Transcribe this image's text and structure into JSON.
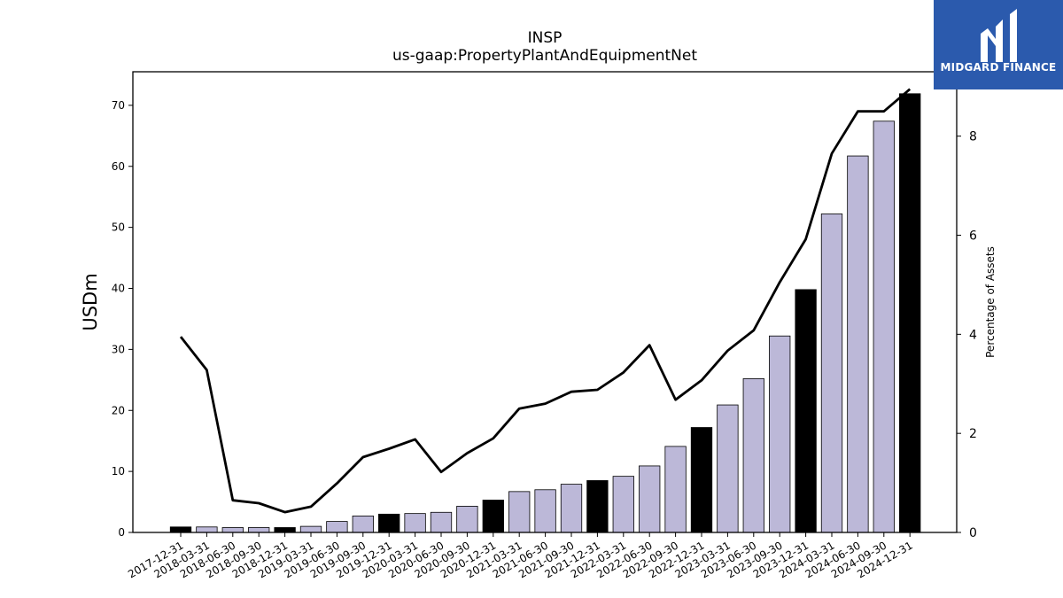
{
  "chart_data": {
    "type": "bar",
    "title": "INSP",
    "subtitle": "us-gaap:PropertyPlantAndEquipmentNet",
    "ylabel": "USDm",
    "y2label": "Percentage of Assets",
    "ylim": [
      0,
      75.5
    ],
    "y2lim": [
      0,
      9.3
    ],
    "yticks": [
      0,
      10,
      20,
      30,
      40,
      50,
      60,
      70
    ],
    "y2ticks": [
      0,
      2,
      4,
      6,
      8
    ],
    "categories": [
      "2017-12-31",
      "2018-03-31",
      "2018-06-30",
      "2018-09-30",
      "2018-12-31",
      "2019-03-31",
      "2019-06-30",
      "2019-09-30",
      "2019-12-31",
      "2020-03-31",
      "2020-06-30",
      "2020-09-30",
      "2020-12-31",
      "2021-03-31",
      "2021-06-30",
      "2021-09-30",
      "2021-12-31",
      "2022-03-31",
      "2022-06-30",
      "2022-09-30",
      "2022-12-31",
      "2023-03-31",
      "2023-06-30",
      "2023-09-30",
      "2023-12-31",
      "2024-03-31",
      "2024-06-30",
      "2024-09-30",
      "2024-12-31"
    ],
    "series": [
      {
        "type": "bar",
        "values": [
          0.9,
          0.9,
          0.8,
          0.8,
          0.8,
          1.0,
          1.8,
          2.7,
          3.0,
          3.1,
          3.3,
          4.3,
          5.3,
          6.7,
          7.0,
          7.9,
          8.5,
          9.2,
          10.9,
          14.1,
          17.2,
          20.9,
          25.2,
          32.2,
          39.8,
          52.2,
          61.7,
          67.4,
          71.9
        ],
        "annual_color": "#000000",
        "quarterly_color": "#bcb8d8",
        "annual_flags": [
          true,
          false,
          false,
          false,
          true,
          false,
          false,
          false,
          true,
          false,
          false,
          false,
          true,
          false,
          false,
          false,
          true,
          false,
          false,
          false,
          true,
          false,
          false,
          false,
          true,
          false,
          false,
          false,
          true
        ]
      },
      {
        "type": "line",
        "axis": "right",
        "color": "#000000",
        "values": [
          3.95,
          3.28,
          0.65,
          0.59,
          0.41,
          0.52,
          0.99,
          1.52,
          1.69,
          1.88,
          1.22,
          1.6,
          1.9,
          2.5,
          2.6,
          2.84,
          2.88,
          3.23,
          3.78,
          2.68,
          3.07,
          3.67,
          4.08,
          5.05,
          5.92,
          7.65,
          8.5,
          8.5,
          8.95
        ]
      }
    ]
  },
  "logo": {
    "text": "MIDGARD FINANCE",
    "color": "#2b5aad"
  }
}
